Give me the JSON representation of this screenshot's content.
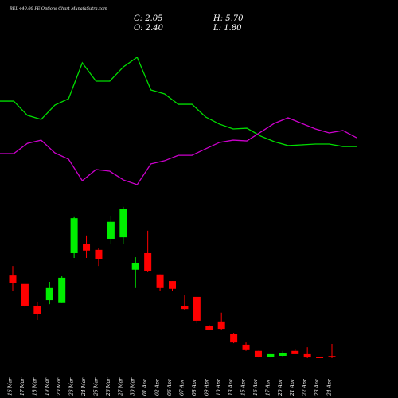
{
  "chart_data": {
    "type": "candlestick",
    "title": "BEL 440.00 PE Options Chart MunafaSutra.com",
    "ohlc_labels": [
      "C: 2.05",
      "H: 5.70",
      "O: 2.40",
      "L: 1.80"
    ],
    "categories": [
      "16 Mar",
      "17 Mar",
      "18 Mar",
      "19 Mar",
      "20 Mar",
      "23 Mar",
      "24 Mar",
      "25 Mar",
      "26 Mar",
      "27 Mar",
      "30 Mar",
      "01 Apr",
      "02 Apr",
      "06 Apr",
      "07 Apr",
      "08 Apr",
      "09 Apr",
      "10 Apr",
      "13 Apr",
      "15 Apr",
      "16 Apr",
      "17 Apr",
      "20 Apr",
      "21 Apr",
      "22 Apr",
      "23 Apr",
      "24 Apr"
    ],
    "open": [
      24.3,
      22.0,
      16.1,
      17.6,
      16.8,
      30.4,
      32.8,
      31.3,
      34.3,
      34.7,
      25.9,
      30.4,
      24.6,
      22.8,
      15.9,
      18.5,
      10.5,
      11.8,
      8.3,
      5.5,
      3.8,
      2.2,
      2.45,
      3.8,
      2.9,
      2.2,
      2.4
    ],
    "high": [
      26.9,
      22.0,
      17.0,
      22.6,
      24.1,
      40.4,
      35.2,
      31.7,
      40.6,
      43.0,
      29.3,
      36.5,
      24.6,
      22.8,
      18.9,
      18.5,
      10.9,
      14.2,
      8.7,
      6.1,
      3.8,
      2.9,
      3.8,
      4.4,
      4.8,
      2.2,
      5.7
    ],
    "low": [
      20.0,
      15.7,
      12.2,
      16.5,
      16.8,
      29.1,
      29.1,
      26.9,
      32.8,
      33.0,
      20.9,
      25.2,
      20.0,
      20.0,
      14.8,
      11.3,
      9.6,
      9.6,
      5.9,
      3.8,
      2.0,
      2.0,
      2.0,
      2.9,
      1.8,
      1.8,
      1.8
    ],
    "close": [
      22.2,
      16.1,
      13.9,
      20.9,
      23.7,
      39.9,
      31.1,
      28.7,
      38.9,
      42.5,
      27.8,
      25.6,
      20.9,
      20.7,
      15.2,
      12.0,
      9.6,
      9.8,
      6.1,
      4.0,
      2.2,
      2.9,
      3.1,
      2.9,
      2.0,
      1.8,
      2.05
    ],
    "up_color": "#00ee00",
    "down_color": "#ff0000",
    "ylim": [
      0,
      45
    ],
    "y2lim": [
      0,
      100
    ],
    "lines": [
      {
        "color": "#00dd00",
        "axis": "y2",
        "values": [
          64.7,
          64.7,
          55.3,
          52.6,
          62.1,
          66.3,
          90,
          77.9,
          77.9,
          87.4,
          93.7,
          72.1,
          69.5,
          62.6,
          62.6,
          54.2,
          49.5,
          46.3,
          46.8,
          41.6,
          37.9,
          35.3,
          35.8,
          36.3,
          36.3,
          34.7,
          34.7
        ]
      },
      {
        "color": "#cc00cc",
        "axis": "y2",
        "values": [
          30,
          30,
          36.8,
          38.9,
          30.5,
          26.3,
          12.1,
          19.5,
          18.4,
          12.6,
          9.5,
          23.2,
          25.3,
          28.9,
          28.9,
          33.2,
          37.4,
          38.9,
          38.4,
          44.2,
          50,
          53.7,
          50,
          46.3,
          43.7,
          45.3,
          40.5
        ]
      }
    ]
  }
}
